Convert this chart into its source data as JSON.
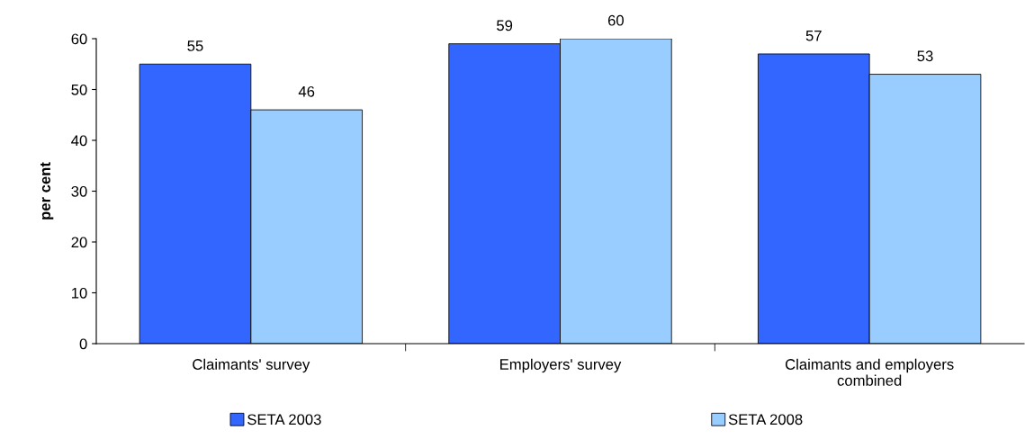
{
  "chart_data": {
    "type": "bar",
    "ylabel": "per cent",
    "categories": [
      "Claimants' survey",
      "Employers' survey",
      "Claimants and employers\ncombined"
    ],
    "series": [
      {
        "name": "SETA 2003",
        "color": "#3366ff",
        "values": [
          55,
          59,
          57
        ]
      },
      {
        "name": "SETA 2008",
        "color": "#99ccff",
        "values": [
          46,
          60,
          53
        ]
      }
    ],
    "ylim": [
      0,
      60
    ],
    "yticks": [
      0,
      10,
      20,
      30,
      40,
      50,
      60
    ],
    "data_labels": true,
    "grid": false,
    "legend": "bottom"
  }
}
